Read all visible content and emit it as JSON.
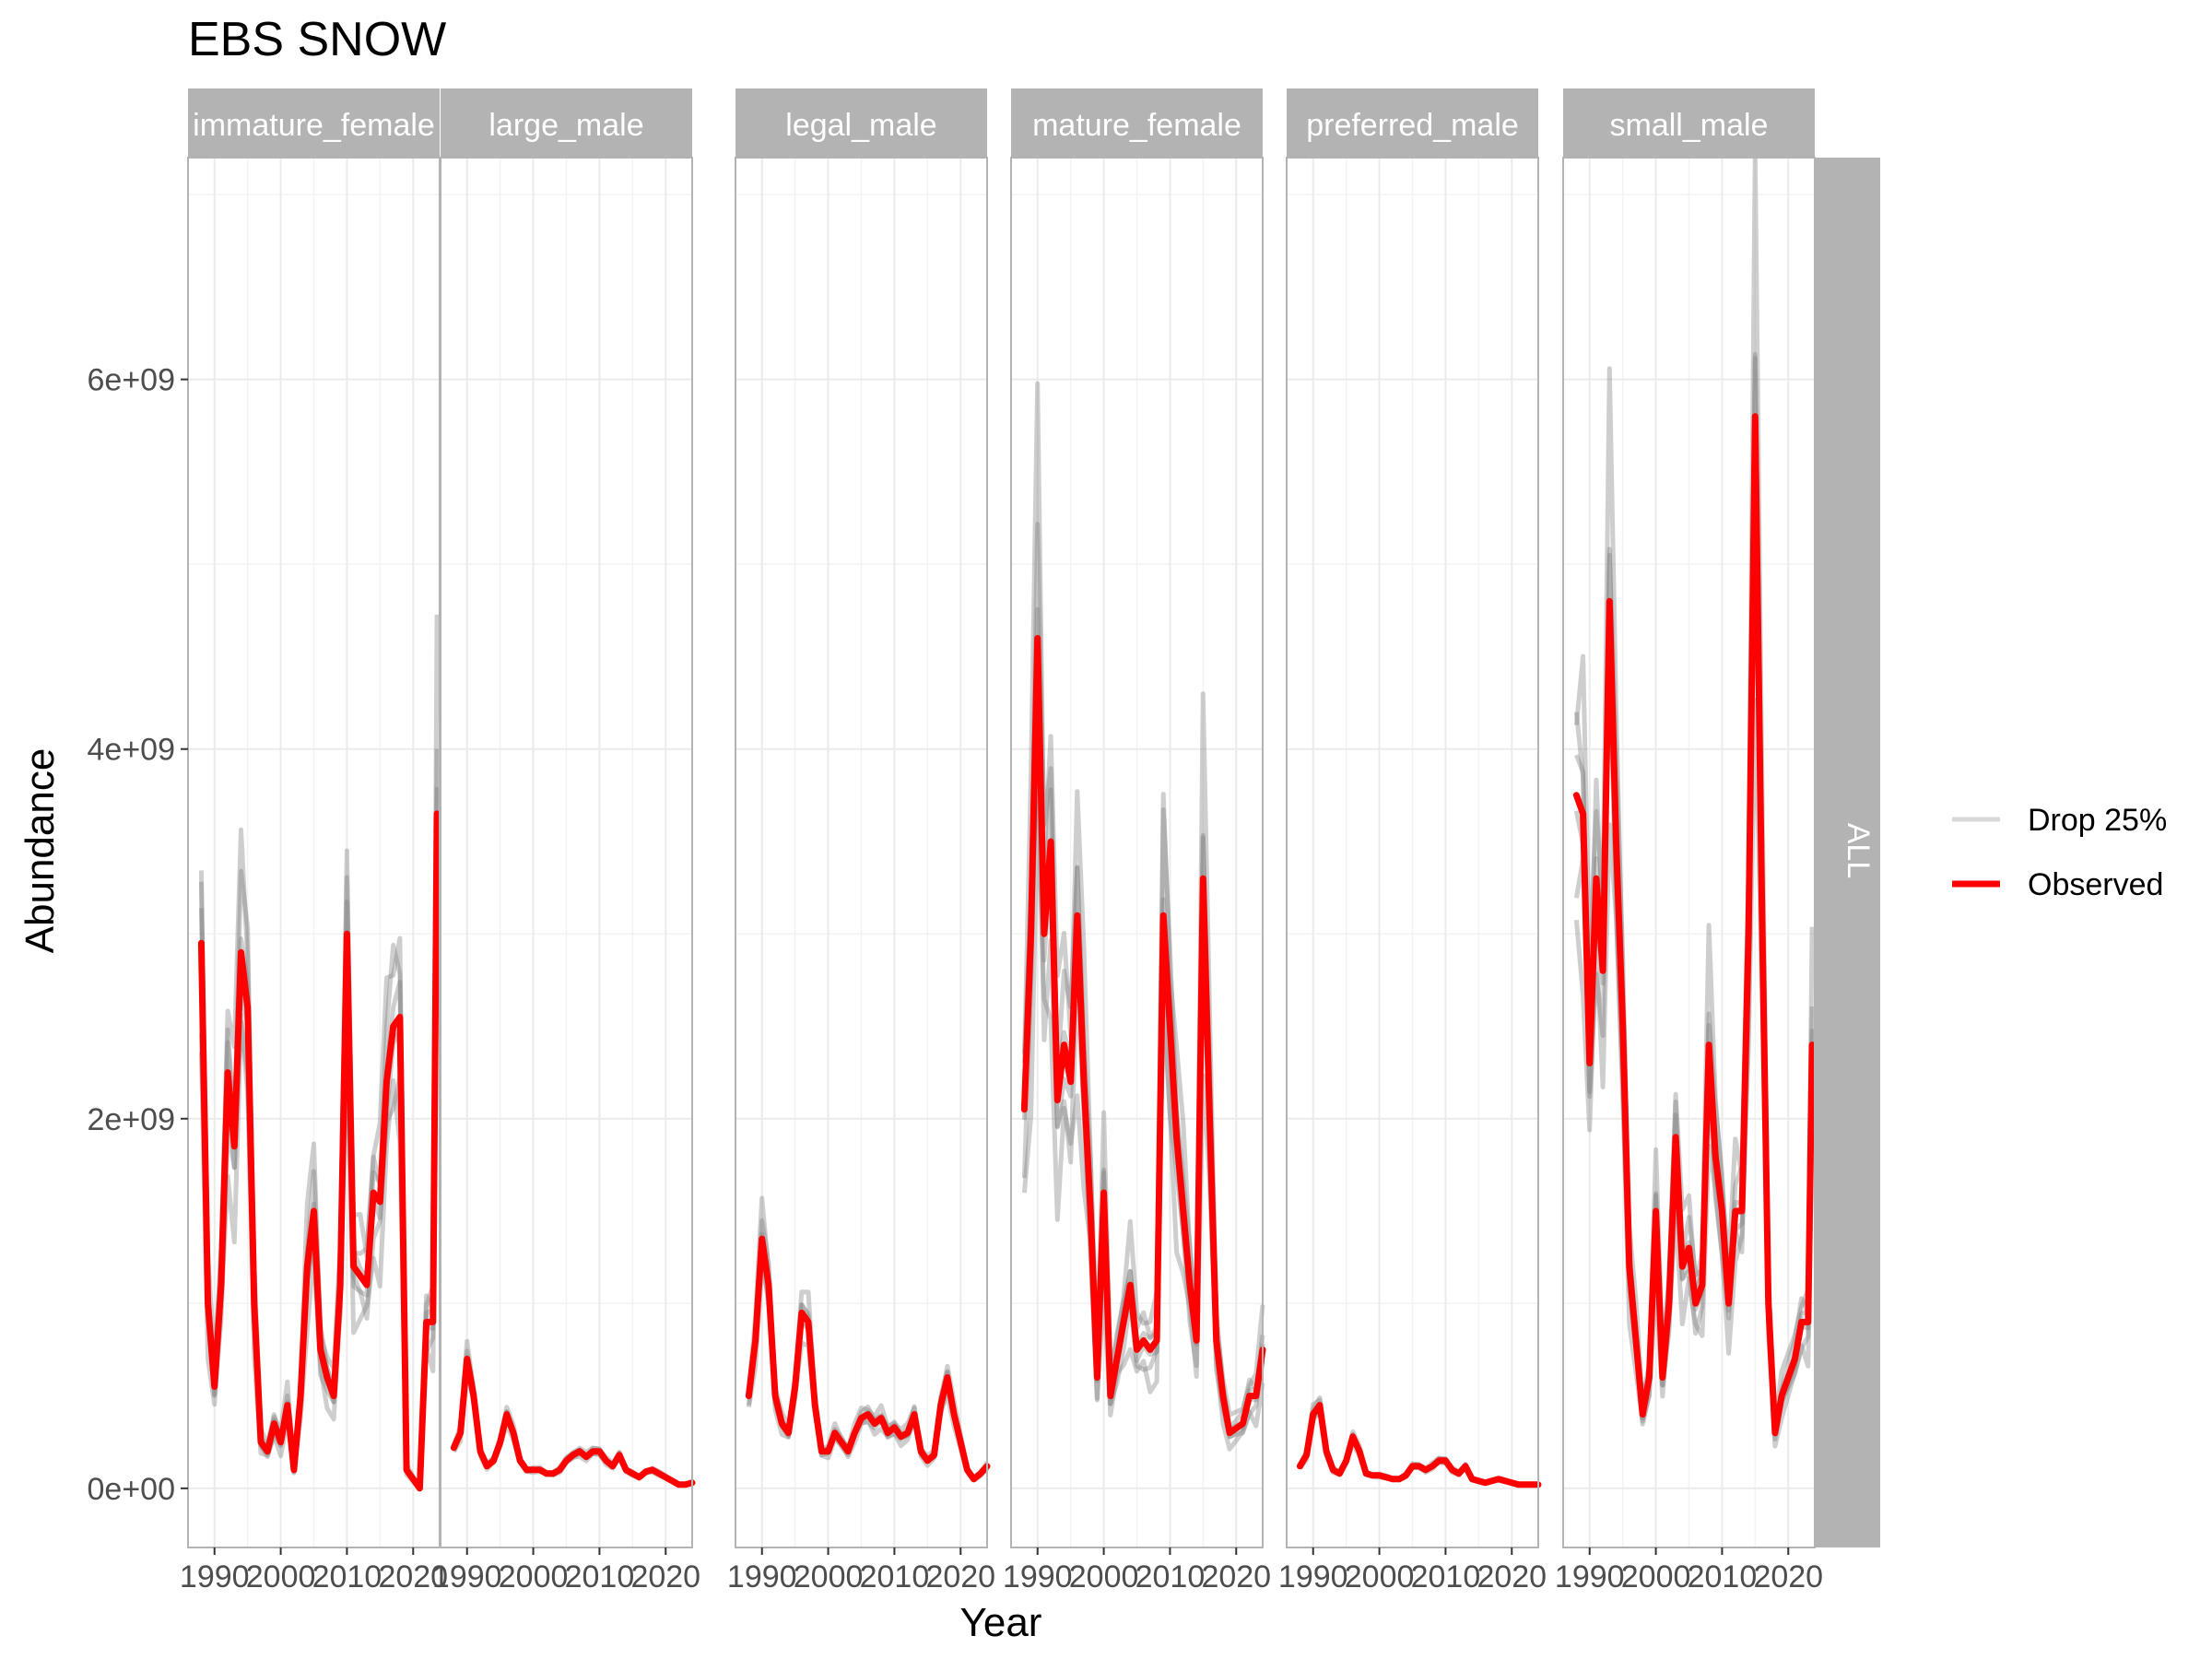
{
  "chart_data": {
    "type": "line",
    "title": "EBS SNOW",
    "xlabel": "Year",
    "ylabel": "Abundance",
    "xlim": [
      1986,
      2024
    ],
    "ylim": [
      -320000000,
      7200000000
    ],
    "x_ticks": [
      1990,
      2000,
      2010,
      2020
    ],
    "x_tick_labels": [
      "1990",
      "2000",
      "2010",
      "2020"
    ],
    "y_ticks": [
      0,
      2000000000,
      4000000000,
      6000000000
    ],
    "y_tick_labels": [
      "0e+00",
      "2e+09",
      "4e+09",
      "6e+09"
    ],
    "grid": true,
    "row_strip": "ALL",
    "legend": {
      "position": "right",
      "entries": [
        {
          "label": "Drop 25%",
          "color": "#d9d9d9"
        },
        {
          "label": "Observed",
          "color": "#ff0000"
        }
      ]
    },
    "colors": {
      "observed": "#ff0000",
      "drop": "#7f7f7f",
      "strip_bg": "#b3b3b3",
      "grid": "#ebebeb",
      "panel_border": "#b3b3b3"
    },
    "x": [
      1988,
      1989,
      1990,
      1991,
      1992,
      1993,
      1994,
      1995,
      1996,
      1997,
      1998,
      1999,
      2000,
      2001,
      2002,
      2003,
      2004,
      2005,
      2006,
      2007,
      2008,
      2009,
      2010,
      2011,
      2012,
      2013,
      2014,
      2015,
      2016,
      2017,
      2018,
      2019,
      2021,
      2022,
      2023
    ],
    "panels": [
      {
        "name": "immature_female",
        "observed": [
          2950000000.0,
          1000000000.0,
          550000000.0,
          1100000000.0,
          2250000000.0,
          1850000000.0,
          2900000000.0,
          2600000000.0,
          1000000000.0,
          250000000.0,
          200000000.0,
          350000000.0,
          250000000.0,
          450000000.0,
          100000000.0,
          500000000.0,
          1200000000.0,
          1500000000.0,
          750000000.0,
          600000000.0,
          500000000.0,
          1100000000.0,
          3000000000.0,
          1200000000.0,
          1150000000.0,
          1100000000.0,
          1600000000.0,
          1550000000.0,
          2200000000.0,
          2500000000.0,
          2550000000.0,
          100000000.0,
          0.0,
          900000000.0,
          900000000.0
        ],
        "last_x": 2023.6,
        "last_y": 3650000000.0,
        "band_peak": 0.2
      },
      {
        "name": "large_male",
        "observed": [
          220000000.0,
          300000000.0,
          700000000.0,
          500000000.0,
          200000000.0,
          120000000.0,
          150000000.0,
          250000000.0,
          400000000.0,
          300000000.0,
          150000000.0,
          100000000.0,
          100000000.0,
          100000000.0,
          80000000.0,
          80000000.0,
          100000000.0,
          150000000.0,
          180000000.0,
          200000000.0,
          170000000.0,
          200000000.0,
          200000000.0,
          150000000.0,
          120000000.0,
          180000000.0,
          100000000.0,
          80000000.0,
          60000000.0,
          90000000.0,
          100000000.0,
          80000000.0,
          40000000.0,
          20000000.0,
          20000000.0
        ],
        "last_x": 2024,
        "last_y": 30000000.0,
        "band_peak": 0.1
      },
      {
        "name": "legal_male",
        "observed": [
          500000000.0,
          800000000.0,
          1350000000.0,
          1100000000.0,
          500000000.0,
          350000000.0,
          300000000.0,
          550000000.0,
          950000000.0,
          900000000.0,
          450000000.0,
          200000000.0,
          200000000.0,
          300000000.0,
          250000000.0,
          200000000.0,
          300000000.0,
          380000000.0,
          400000000.0,
          350000000.0,
          380000000.0,
          300000000.0,
          330000000.0,
          280000000.0,
          300000000.0,
          400000000.0,
          200000000.0,
          150000000.0,
          180000000.0,
          450000000.0,
          600000000.0,
          400000000.0,
          100000000.0,
          50000000.0,
          80000000.0
        ],
        "last_x": 2024,
        "last_y": 120000000.0,
        "band_peak": 0.12
      },
      {
        "name": "mature_female",
        "observed": [
          2050000000.0,
          3000000000.0,
          4600000000.0,
          3000000000.0,
          3500000000.0,
          2100000000.0,
          2400000000.0,
          2200000000.0,
          3100000000.0,
          2200000000.0,
          1500000000.0,
          600000000.0,
          1600000000.0,
          500000000.0,
          700000000.0,
          900000000.0,
          1100000000.0,
          750000000.0,
          800000000.0,
          750000000.0,
          800000000.0,
          3100000000.0,
          2500000000.0,
          1900000000.0,
          1500000000.0,
          1100000000.0,
          800000000.0,
          3300000000.0,
          2000000000.0,
          800000000.0,
          500000000.0,
          300000000.0,
          350000000.0,
          500000000.0,
          500000000.0
        ],
        "last_x": 2024,
        "last_y": 750000000.0,
        "band_peak": 0.22
      },
      {
        "name": "preferred_male",
        "observed": [
          120000000.0,
          180000000.0,
          400000000.0,
          450000000.0,
          200000000.0,
          100000000.0,
          80000000.0,
          150000000.0,
          280000000.0,
          200000000.0,
          80000000.0,
          70000000.0,
          70000000.0,
          60000000.0,
          50000000.0,
          50000000.0,
          70000000.0,
          120000000.0,
          120000000.0,
          100000000.0,
          120000000.0,
          150000000.0,
          150000000.0,
          100000000.0,
          80000000.0,
          120000000.0,
          50000000.0,
          40000000.0,
          30000000.0,
          40000000.0,
          50000000.0,
          40000000.0,
          20000000.0,
          20000000.0,
          20000000.0
        ],
        "last_x": 2024,
        "last_y": 20000000.0,
        "band_peak": 0.1
      },
      {
        "name": "small_male",
        "observed": [
          3750000000.0,
          3650000000.0,
          2300000000.0,
          3300000000.0,
          2800000000.0,
          4800000000.0,
          3500000000.0,
          2500000000.0,
          1200000000.0,
          800000000.0,
          400000000.0,
          600000000.0,
          1500000000.0,
          600000000.0,
          1000000000.0,
          1900000000.0,
          1200000000.0,
          1300000000.0,
          1000000000.0,
          1100000000.0,
          2400000000.0,
          1800000000.0,
          1500000000.0,
          1000000000.0,
          1500000000.0,
          1500000000.0,
          3000000000.0,
          5800000000.0,
          3200000000.0,
          1000000000.0,
          300000000.0,
          500000000.0,
          700000000.0,
          900000000.0,
          900000000.0
        ],
        "last_x": 2023.6,
        "last_y": 2400000000.0,
        "band_peak": 0.18
      }
    ]
  }
}
